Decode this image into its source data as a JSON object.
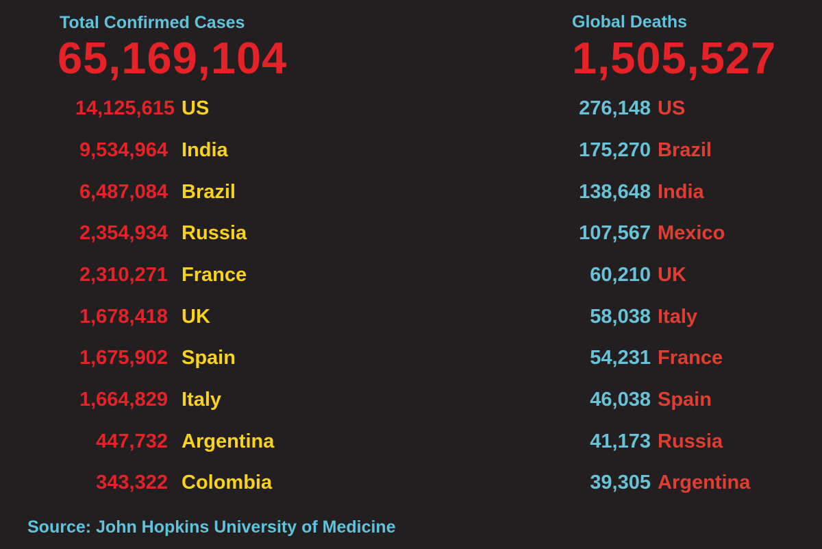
{
  "cases": {
    "heading": "Total Confirmed Cases",
    "total": "65,169,104",
    "rows": [
      {
        "count": "14,125,615",
        "country": "US"
      },
      {
        "count": "9,534,964",
        "country": "India"
      },
      {
        "count": "6,487,084",
        "country": "Brazil"
      },
      {
        "count": "2,354,934",
        "country": "Russia"
      },
      {
        "count": "2,310,271",
        "country": "France"
      },
      {
        "count": "1,678,418",
        "country": "UK"
      },
      {
        "count": "1,675,902",
        "country": "Spain"
      },
      {
        "count": "1,664,829",
        "country": "Italy"
      },
      {
        "count": "447,732",
        "country": "Argentina"
      },
      {
        "count": "343,322",
        "country": "Colombia"
      }
    ]
  },
  "deaths": {
    "heading": "Global Deaths",
    "total": "1,505,527",
    "rows": [
      {
        "count": "276,148",
        "country": "US"
      },
      {
        "count": "175,270",
        "country": "Brazil"
      },
      {
        "count": "138,648",
        "country": "India"
      },
      {
        "count": "107,567",
        "country": "Mexico"
      },
      {
        "count": "60,210",
        "country": "UK"
      },
      {
        "count": "58,038",
        "country": "Italy"
      },
      {
        "count": "54,231",
        "country": "France"
      },
      {
        "count": "46,038",
        "country": "Spain"
      },
      {
        "count": "41,173",
        "country": "Russia"
      },
      {
        "count": "39,305",
        "country": "Argentina"
      }
    ]
  },
  "source": "Source: John Hopkins University of Medicine",
  "colors": {
    "background": "#231f20",
    "heading": "#5fc3dc",
    "cases_number": "#e62229",
    "cases_country": "#f8d21c",
    "deaths_number": "#68c2d8",
    "deaths_country": "#e03d33"
  }
}
